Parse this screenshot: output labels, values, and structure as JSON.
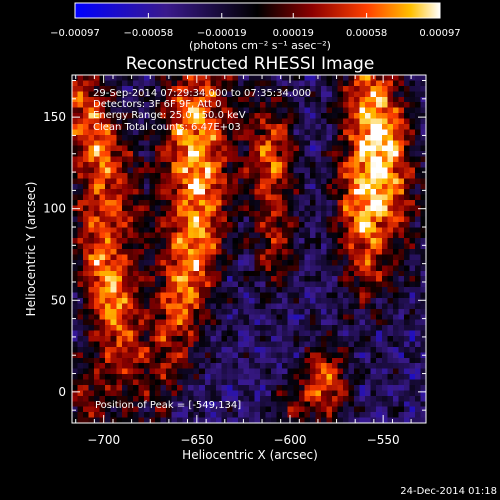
{
  "chart_data": {
    "type": "heatmap",
    "title": "Reconstructed RHESSI Image",
    "xlabel": "Heliocentric X (arcsec)",
    "ylabel": "Heliocentric Y (arcsec)",
    "xlim": [
      -717,
      -527
    ],
    "ylim": [
      -17,
      173
    ],
    "xticks": [
      -700,
      -650,
      -600,
      -550
    ],
    "xtick_labels": [
      "−700",
      "−650",
      "−600",
      "−550"
    ],
    "yticks": [
      0,
      50,
      100,
      150
    ],
    "ytick_labels": [
      "0",
      "50",
      "100",
      "150"
    ],
    "colorbar": {
      "min": -0.00097,
      "max": 0.00097,
      "ticks": [
        -0.00097,
        -0.00058,
        -0.00019,
        0.00019,
        0.00058,
        0.00097
      ],
      "tick_labels": [
        "−0.00097",
        "−0.00058",
        "−0.00019",
        "0.00019",
        "0.00058",
        "0.00097"
      ],
      "units_text": "(photons cm⁻² s⁻¹ asec⁻²)",
      "colors": [
        "#0000ff",
        "#3a1a8c",
        "#000000",
        "#8c0000",
        "#ff4000",
        "#ffc000",
        "#ffffff"
      ]
    },
    "annotations": [
      "29-Sep-2014 07:29:34.000 to 07:35:34.000",
      "Detectors: 3F 6F 9F, Att 0",
      "Energy Range: 25.0 - 50.0 keV",
      "Clean     Total counts: 6.47E+03"
    ],
    "peak_text": "Position of Peak = [-549,134]",
    "peak": [
      -549,
      134
    ],
    "sources": [
      {
        "x": -705,
        "y": 140,
        "amp": 0.8,
        "sx": 11,
        "sy": 38,
        "ang": -0.35
      },
      {
        "x": -697,
        "y": 55,
        "amp": 0.9,
        "sx": 10,
        "sy": 35,
        "ang": -0.2
      },
      {
        "x": -708,
        "y": -5,
        "amp": 0.45,
        "sx": 10,
        "sy": 18,
        "ang": 0
      },
      {
        "x": -652,
        "y": 140,
        "amp": 0.85,
        "sx": 13,
        "sy": 38,
        "ang": 0.1
      },
      {
        "x": -655,
        "y": 60,
        "amp": 0.75,
        "sx": 11,
        "sy": 45,
        "ang": 0.25
      },
      {
        "x": -610,
        "y": 130,
        "amp": 0.7,
        "sx": 9,
        "sy": 22,
        "ang": 0
      },
      {
        "x": -608,
        "y": 80,
        "amp": 0.5,
        "sx": 8,
        "sy": 20,
        "ang": 0
      },
      {
        "x": -552,
        "y": 140,
        "amp": 1.0,
        "sx": 12,
        "sy": 40,
        "ang": -0.15
      },
      {
        "x": -562,
        "y": 90,
        "amp": 0.7,
        "sx": 10,
        "sy": 30,
        "ang": -0.1
      },
      {
        "x": -581,
        "y": 5,
        "amp": 0.75,
        "sx": 9,
        "sy": 16,
        "ang": 0
      },
      {
        "x": -600,
        "y": -8,
        "amp": 0.35,
        "sx": 8,
        "sy": 10,
        "ang": 0
      }
    ]
  },
  "timestamp": "24-Dec-2014 01:18"
}
